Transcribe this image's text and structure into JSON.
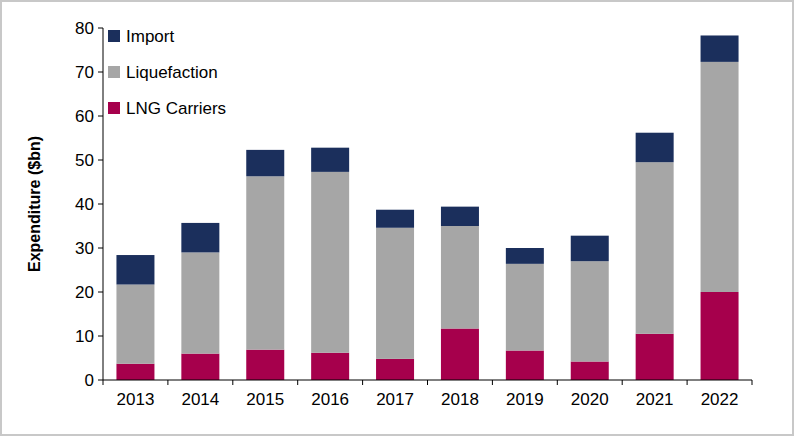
{
  "chart_data": {
    "type": "bar",
    "stacked": true,
    "y_label": "Expenditure ($bn)",
    "categories": [
      "2013",
      "2014",
      "2015",
      "2016",
      "2017",
      "2018",
      "2019",
      "2020",
      "2021",
      "2022"
    ],
    "series": [
      {
        "name": "LNG Carriers",
        "color": "#a6004c",
        "values": [
          3.7,
          6.0,
          6.9,
          6.2,
          4.8,
          11.7,
          6.7,
          4.2,
          10.5,
          20.0
        ]
      },
      {
        "name": "Liquefaction",
        "color": "#a6a6a6",
        "values": [
          18.0,
          23.0,
          39.4,
          41.1,
          29.8,
          23.3,
          19.7,
          22.8,
          39.0,
          52.3
        ]
      },
      {
        "name": "Import",
        "color": "#1b2f5c",
        "values": [
          6.7,
          6.7,
          6.0,
          5.5,
          4.1,
          4.4,
          3.6,
          5.8,
          6.7,
          6.0
        ]
      }
    ],
    "ylim": [
      0,
      80
    ],
    "yticks": [
      0,
      10,
      20,
      30,
      40,
      50,
      60,
      70,
      80
    ],
    "legend": "top-left"
  }
}
